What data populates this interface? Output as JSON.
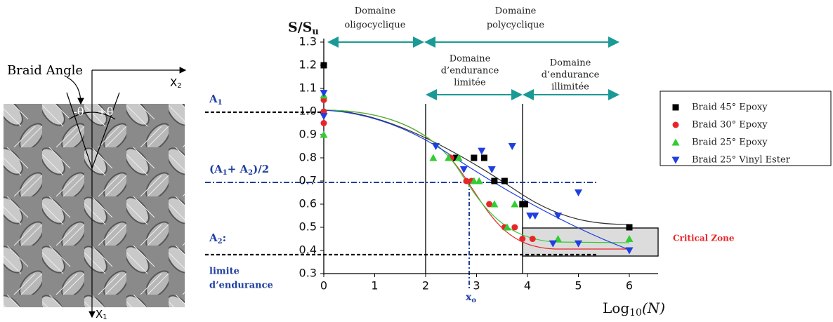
{
  "chart_data": {
    "type": "scatter",
    "y_label": [
      "S/S",
      "u"
    ],
    "x_label": [
      "Log",
      "10",
      "(N)"
    ],
    "xlim": [
      0,
      6.5
    ],
    "ylim": [
      0.3,
      1.3
    ],
    "xticks": [
      0,
      1,
      2,
      3,
      4,
      5,
      6
    ],
    "yticks": [
      0.3,
      0.4,
      0.5,
      0.6,
      0.7,
      0.8,
      0.9,
      {
        "value": 1,
        "label": "1.0"
      },
      1.1,
      1.2,
      1.3
    ],
    "series": [
      {
        "name": "Braid 45° Epoxy",
        "color": "#000000",
        "marker": "square",
        "x": [
          0,
          2.6,
          2.95,
          3.15,
          3.35,
          3.55,
          3.9,
          3.95,
          6
        ],
        "values": [
          1.2,
          0.8,
          0.8,
          0.8,
          0.7,
          0.7,
          0.6,
          0.6,
          0.5
        ]
      },
      {
        "name": "Braid 30° Epoxy",
        "color": "#e8262a",
        "marker": "circle",
        "x": [
          0,
          0,
          0,
          2.5,
          2.8,
          2.9,
          3.25,
          3.55,
          3.75,
          3.9,
          4.1
        ],
        "values": [
          1.05,
          1.0,
          0.95,
          0.8,
          0.7,
          0.7,
          0.6,
          0.5,
          0.5,
          0.45,
          0.45
        ]
      },
      {
        "name": "Braid 25° Epoxy",
        "color": "#33cc33",
        "marker": "triangle-up",
        "x": [
          0,
          0,
          2.15,
          2.45,
          2.65,
          2.95,
          3.05,
          3.35,
          3.6,
          3.75,
          4.6,
          6
        ],
        "values": [
          1.07,
          0.9,
          0.8,
          0.8,
          0.8,
          0.7,
          0.7,
          0.6,
          0.5,
          0.6,
          0.45,
          0.45
        ]
      },
      {
        "name": "Braid 25° Vinyl Ester",
        "color": "#1f3fe0",
        "marker": "triangle-down",
        "x": [
          0,
          0,
          2.2,
          2.75,
          3.1,
          3.3,
          3.7,
          4.05,
          4.15,
          4.6,
          5,
          4.5,
          5,
          6
        ],
        "values": [
          1.08,
          0.98,
          0.85,
          0.75,
          0.83,
          0.75,
          0.85,
          0.55,
          0.55,
          0.55,
          0.65,
          0.43,
          0.43,
          0.4
        ]
      }
    ],
    "annotations": {
      "oligo": [
        "Domaine",
        "oligocyclique"
      ],
      "poly": [
        "Domaine",
        "polycyclique"
      ],
      "limited": [
        "Domaine",
        "d’endurance",
        "limitée"
      ],
      "unlimited": [
        "Domaine",
        "d’endurance",
        "illimitée"
      ],
      "a1": [
        "A",
        "1"
      ],
      "mid": [
        "(A",
        "1",
        "+ A",
        "2",
        ")/2"
      ],
      "a2": [
        "A",
        "2",
        ":"
      ],
      "limit": [
        "limite",
        "d’endurance"
      ],
      "xo": [
        "x",
        "o"
      ],
      "critical": "Critical Zone"
    }
  },
  "image_labels": {
    "braid_angle": "Braid Angle",
    "x2": [
      "X",
      "2"
    ],
    "x1": [
      "X",
      "1"
    ],
    "minus_theta": "-θ",
    "plus_theta": "+θ"
  }
}
